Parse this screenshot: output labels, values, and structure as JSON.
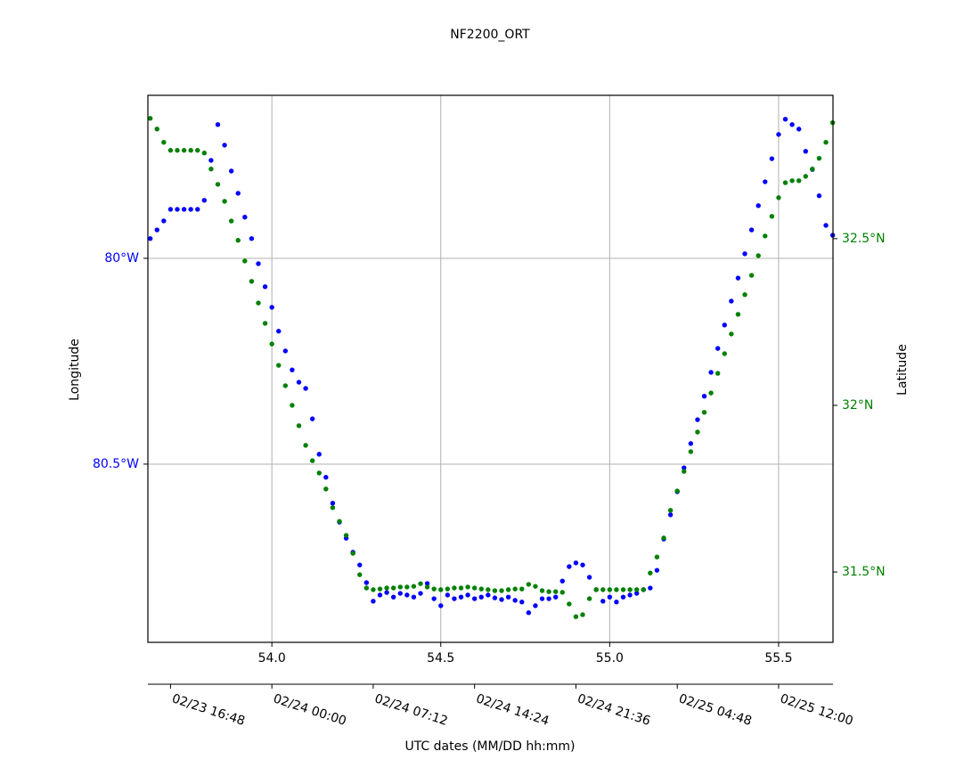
{
  "chart_data": {
    "type": "scatter",
    "title": "NF2200_ORT",
    "ylabel": "Longitude",
    "y2label": "Latitude",
    "x2label": "UTC dates (MM/DD hh:mm)",
    "xlim": [
      53.633,
      55.661
    ],
    "ylim": [
      -80.933,
      -79.604
    ],
    "y2lim": [
      31.289,
      32.93
    ],
    "xticks": [
      {
        "value": 54,
        "label": "54.0"
      },
      54.5,
      {
        "value": 55,
        "label": "55.0"
      },
      55.5
    ],
    "yticks": [
      {
        "value": -80,
        "label": "80°W"
      },
      {
        "value": -80.5,
        "label": "80.5°W"
      }
    ],
    "y2ticks": [
      {
        "value": 32.5,
        "label": "32.5°N"
      },
      {
        "value": 32,
        "label": "32°N"
      },
      {
        "value": 31.5,
        "label": "31.5°N"
      }
    ],
    "x2ticks": [
      {
        "value": 53.7,
        "label": "02/23 16:48"
      },
      {
        "value": 54.0,
        "label": "02/24 00:00"
      },
      {
        "value": 54.3,
        "label": "02/24 07:12"
      },
      {
        "value": 54.6,
        "label": "02/24 14:24"
      },
      {
        "value": 54.9,
        "label": "02/24 21:36"
      },
      {
        "value": 55.2,
        "label": "02/25 04:48"
      },
      {
        "value": 55.5,
        "label": "02/25 12:00"
      }
    ],
    "grid": true,
    "x": [
      53.64,
      53.66,
      53.68,
      53.7,
      53.72,
      53.74,
      53.76,
      53.78,
      53.8,
      53.82,
      53.84,
      53.86,
      53.88,
      53.9,
      53.92,
      53.94,
      53.96,
      53.98,
      54.0,
      54.02,
      54.04,
      54.06,
      54.08,
      54.1,
      54.12,
      54.14,
      54.16,
      54.18,
      54.2,
      54.22,
      54.24,
      54.26,
      54.28,
      54.3,
      54.32,
      54.34,
      54.36,
      54.38,
      54.4,
      54.42,
      54.44,
      54.46,
      54.48,
      54.5,
      54.52,
      54.54,
      54.56,
      54.58,
      54.6,
      54.62,
      54.64,
      54.66,
      54.68,
      54.7,
      54.72,
      54.74,
      54.76,
      54.78,
      54.8,
      54.82,
      54.84,
      54.86,
      54.88,
      54.9,
      54.92,
      54.94,
      54.96,
      54.98,
      55.0,
      55.02,
      55.04,
      55.06,
      55.08,
      55.1,
      55.12,
      55.14,
      55.16,
      55.18,
      55.2,
      55.22,
      55.24,
      55.26,
      55.28,
      55.3,
      55.32,
      55.34,
      55.36,
      55.38,
      55.4,
      55.42,
      55.44,
      55.46,
      55.48,
      55.5,
      55.52,
      55.54,
      55.56,
      55.58,
      55.6,
      55.62,
      55.64,
      55.66
    ],
    "series": [
      {
        "color": "#0000ff",
        "values": [
          -79.952,
          -79.931,
          -79.909,
          -79.881,
          -79.881,
          -79.881,
          -79.881,
          -79.881,
          -79.859,
          -79.762,
          -79.675,
          -79.725,
          -79.788,
          -79.842,
          -79.9,
          -79.952,
          -80.013,
          -80.069,
          -80.119,
          -80.177,
          -80.225,
          -80.271,
          -80.301,
          -80.316,
          -80.39,
          -80.476,
          -80.532,
          -80.595,
          -80.641,
          -80.68,
          -80.714,
          -80.745,
          -80.788,
          -80.833,
          -80.818,
          -80.812,
          -80.823,
          -80.814,
          -80.818,
          -80.823,
          -80.814,
          -80.79,
          -80.827,
          -80.844,
          -80.818,
          -80.827,
          -80.823,
          -80.818,
          -80.827,
          -80.823,
          -80.818,
          -80.825,
          -80.829,
          -80.823,
          -80.831,
          -80.835,
          -80.861,
          -80.844,
          -80.827,
          -80.827,
          -80.823,
          -80.784,
          -80.749,
          -80.74,
          -80.745,
          -80.775,
          -80.805,
          -80.833,
          -80.823,
          -80.835,
          -80.823,
          -80.818,
          -80.814,
          -80.805,
          -80.801,
          -80.758,
          -80.682,
          -80.623,
          -80.567,
          -80.509,
          -80.45,
          -80.392,
          -80.335,
          -80.277,
          -80.219,
          -80.162,
          -80.104,
          -80.048,
          -79.989,
          -79.931,
          -79.872,
          -79.814,
          -79.758,
          -79.699,
          -79.662,
          -79.675,
          -79.686,
          -79.74,
          -79.784,
          -79.848,
          -79.92,
          -79.944
        ]
      },
      {
        "color": "#008000",
        "axis": "y2",
        "values": [
          32.861,
          32.829,
          32.789,
          32.765,
          32.765,
          32.765,
          32.765,
          32.765,
          32.757,
          32.709,
          32.663,
          32.612,
          32.553,
          32.495,
          32.433,
          32.372,
          32.307,
          32.246,
          32.184,
          32.12,
          32.059,
          32.0,
          31.939,
          31.88,
          31.834,
          31.797,
          31.749,
          31.693,
          31.652,
          31.61,
          31.556,
          31.492,
          31.452,
          31.447,
          31.449,
          31.452,
          31.452,
          31.455,
          31.455,
          31.457,
          31.465,
          31.455,
          31.449,
          31.447,
          31.449,
          31.452,
          31.452,
          31.455,
          31.452,
          31.449,
          31.447,
          31.444,
          31.444,
          31.447,
          31.449,
          31.449,
          31.463,
          31.457,
          31.444,
          31.441,
          31.441,
          31.439,
          31.404,
          31.366,
          31.372,
          31.42,
          31.447,
          31.447,
          31.447,
          31.447,
          31.447,
          31.447,
          31.447,
          31.447,
          31.497,
          31.545,
          31.602,
          31.685,
          31.743,
          31.802,
          31.861,
          31.92,
          31.979,
          32.037,
          32.096,
          32.155,
          32.214,
          32.273,
          32.332,
          32.39,
          32.449,
          32.508,
          32.567,
          32.623,
          32.668,
          32.674,
          32.674,
          32.687,
          32.709,
          32.741,
          32.789,
          32.848
        ]
      }
    ]
  }
}
